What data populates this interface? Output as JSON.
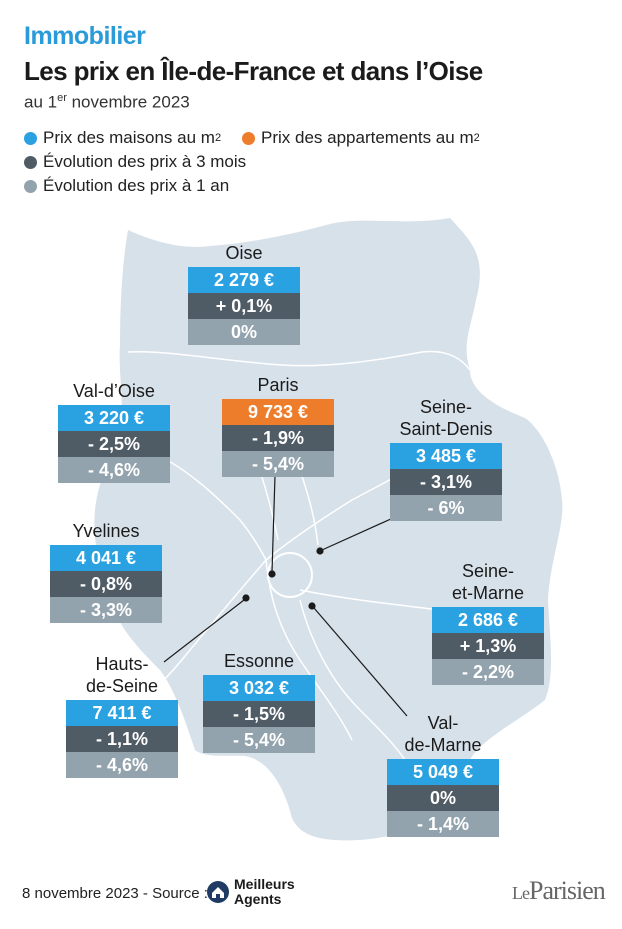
{
  "header": {
    "kicker": "Immobilier",
    "title": "Les prix en Île-de-France et dans l’Oise",
    "date_prefix": "au 1",
    "date_sup": "er",
    "date_suffix": " novembre 2023"
  },
  "legend": {
    "house": {
      "label": "Prix des maisons au m",
      "sup": "2",
      "color": "#2aa2e2"
    },
    "apartment": {
      "label": "Prix des appartements au m",
      "sup": "2",
      "color": "#ee7d2b"
    },
    "change_3m": {
      "label": "Évolution des prix à 3 mois",
      "color": "#4f5c66"
    },
    "change_1y": {
      "label": "Évolution des prix à 1 an",
      "color": "#93a3ad"
    }
  },
  "regions": {
    "oise": {
      "name": "Oise",
      "price": "2 279 €",
      "change_3m": "+ 0,1%",
      "change_1y": "0%"
    },
    "val_doise": {
      "name": "Val-d’Oise",
      "price": "3 220 €",
      "change_3m": "- 2,5%",
      "change_1y": "- 4,6%"
    },
    "paris": {
      "name": "Paris",
      "price": "9 733 €",
      "change_3m": "- 1,9%",
      "change_1y": "- 5,4%"
    },
    "seine_saint_denis": {
      "name_line1": "Seine-",
      "name_line2": "Saint-Denis",
      "price": "3 485 €",
      "change_3m": "- 3,1%",
      "change_1y": "- 6%"
    },
    "yvelines": {
      "name": "Yvelines",
      "price": "4 041 €",
      "change_3m": "- 0,8%",
      "change_1y": "- 3,3%"
    },
    "seine_et_marne": {
      "name_line1": "Seine-",
      "name_line2": "et-Marne",
      "price": "2 686 €",
      "change_3m": "+ 1,3%",
      "change_1y": "- 2,2%"
    },
    "hauts_de_seine": {
      "name_line1": "Hauts-",
      "name_line2": "de-Seine",
      "price": "7 411 €",
      "change_3m": "- 1,1%",
      "change_1y": "- 4,6%"
    },
    "essonne": {
      "name": "Essonne",
      "price": "3 032 €",
      "change_3m": "- 1,5%",
      "change_1y": "- 5,4%"
    },
    "val_de_marne": {
      "name_line1": "Val-",
      "name_line2": "de-Marne",
      "price": "5 049 €",
      "change_3m": "0%",
      "change_1y": "- 1,4%"
    }
  },
  "footer": {
    "source": "8 novembre 2023 - Source :",
    "source_logo_line1": "Meilleurs",
    "source_logo_line2": "Agents",
    "brand_le": "Le",
    "brand_parisien": "Parisien"
  }
}
